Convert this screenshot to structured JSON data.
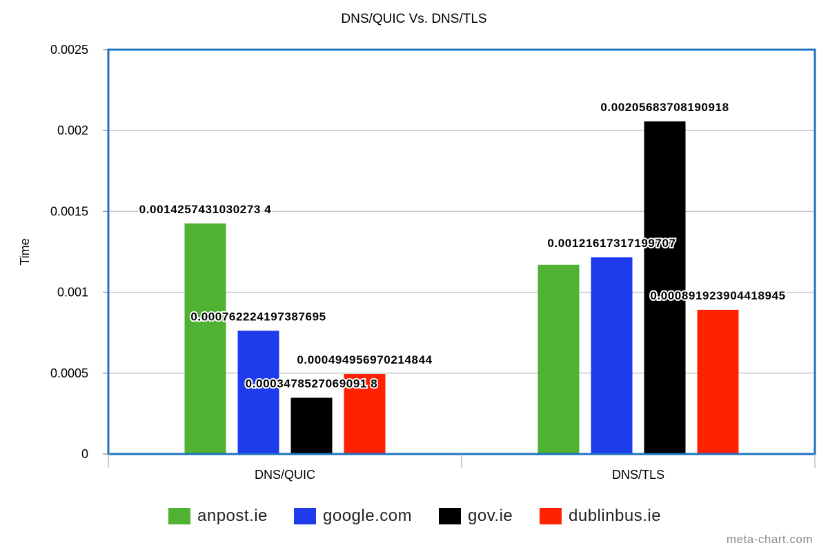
{
  "chart_data": {
    "type": "bar",
    "title": "DNS/QUIC Vs. DNS/TLS",
    "xlabel": "",
    "ylabel": "Time",
    "ylim": [
      0,
      0.0025
    ],
    "yticks": [
      "0",
      "0.0005",
      "0.001",
      "0.0015",
      "0.002",
      "0.0025"
    ],
    "categories": [
      "DNS/QUIC",
      "DNS/TLS"
    ],
    "series": [
      {
        "name": "anpost.ie",
        "color": "#4fb233",
        "values": [
          0.0014257431030273,
          0.00117
        ],
        "value_labels": [
          "0.0014257431030273 4",
          ""
        ]
      },
      {
        "name": "google.com",
        "color": "#1e3ceb",
        "values": [
          0.000762224197387695,
          0.00121617317199707
        ],
        "value_labels": [
          "0.000762224197387695",
          "0.00121617317199707"
        ]
      },
      {
        "name": "gov.ie",
        "color": "#000000",
        "values": [
          0.00034785270690918,
          0.00205683708190918
        ],
        "value_labels": [
          "0.0003478527069091 8",
          "0.00205683708190918"
        ]
      },
      {
        "name": "dublinbus.ie",
        "color": "#ff2200",
        "values": [
          0.000494956970214844,
          0.000891923904418945
        ],
        "value_labels": [
          "0.000494956970214844",
          "0.000891923904418945"
        ]
      }
    ],
    "grid": true,
    "legend": "bottom"
  },
  "footer": {
    "watermark": "meta-chart.com"
  }
}
